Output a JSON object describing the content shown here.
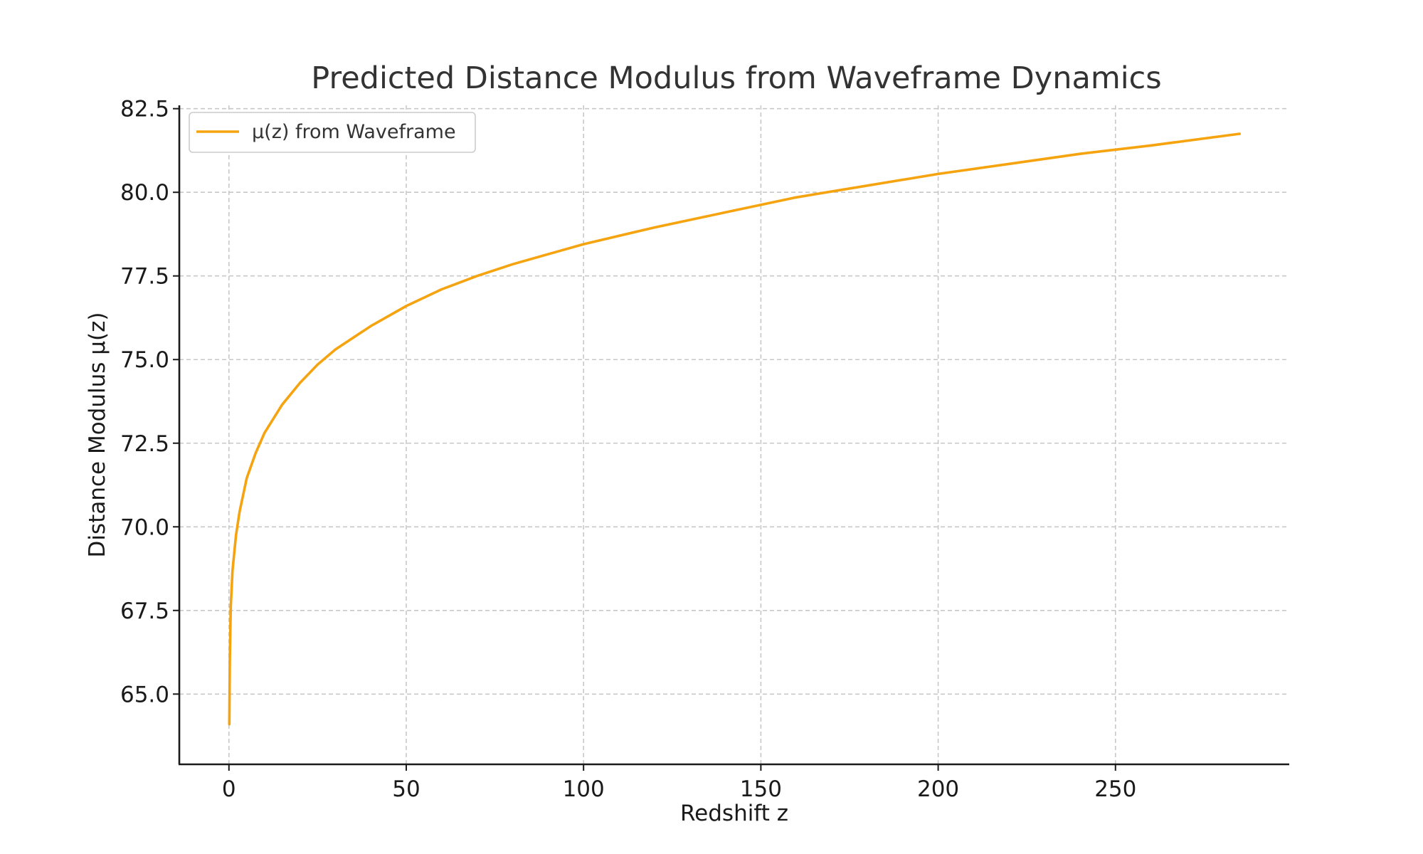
{
  "chart_data": {
    "type": "line",
    "title": "Predicted Distance Modulus from Waveframe Dynamics",
    "xlabel": "Redshift z",
    "ylabel": "Distance Modulus μ(z)",
    "xlim": [
      -14,
      299
    ],
    "ylim": [
      62.9,
      82.6
    ],
    "xticks": [
      0,
      50,
      100,
      150,
      200,
      250
    ],
    "xtick_labels": [
      "0",
      "50",
      "100",
      "150",
      "200",
      "250"
    ],
    "yticks": [
      65.0,
      67.5,
      70.0,
      72.5,
      75.0,
      77.5,
      80.0,
      82.5
    ],
    "ytick_labels": [
      "65.0",
      "67.5",
      "70.0",
      "72.5",
      "75.0",
      "77.5",
      "80.0",
      "82.5"
    ],
    "grid": true,
    "legend_position": "top-left",
    "series": [
      {
        "name": "μ(z) from Waveframe",
        "color": "#f5a30f",
        "x": [
          0.1,
          0.25,
          0.5,
          1,
          2,
          3,
          5,
          7.5,
          10,
          15,
          20,
          25,
          30,
          40,
          50,
          60,
          70,
          80,
          90,
          100,
          120,
          140,
          160,
          180,
          200,
          220,
          240,
          260,
          285
        ],
        "y": [
          64.1,
          66.0,
          67.6,
          68.7,
          69.75,
          70.45,
          71.45,
          72.2,
          72.8,
          73.65,
          74.3,
          74.85,
          75.3,
          76.0,
          76.6,
          77.1,
          77.5,
          77.85,
          78.15,
          78.45,
          78.95,
          79.4,
          79.85,
          80.2,
          80.55,
          80.85,
          81.15,
          81.4,
          81.75
        ]
      }
    ]
  }
}
